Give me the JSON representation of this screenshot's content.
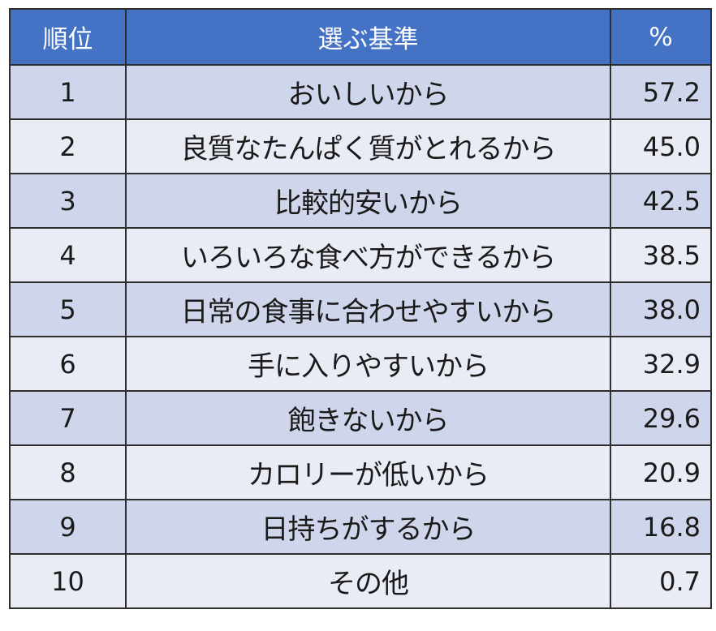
{
  "chart_data": {
    "type": "table",
    "columns": [
      "順位",
      "選ぶ基準",
      "%"
    ],
    "rows": [
      [
        "1",
        "おいしいから",
        "57.2"
      ],
      [
        "2",
        "良質なたんぱく質がとれるから",
        "45.0"
      ],
      [
        "3",
        "比較的安いから",
        "42.5"
      ],
      [
        "4",
        "いろいろな食べ方ができるから",
        "38.5"
      ],
      [
        "5",
        "日常の食事に合わせやすいから",
        "38.0"
      ],
      [
        "6",
        "手に入りやすいから",
        "32.9"
      ],
      [
        "7",
        "飽きないから",
        "29.6"
      ],
      [
        "8",
        "カロリーが低いから",
        "20.9"
      ],
      [
        "9",
        "日持ちがするから",
        "16.8"
      ],
      [
        "10",
        "その他",
        "0.7"
      ]
    ]
  },
  "colors": {
    "header_bg": "#4472c4",
    "header_text": "#ffffff",
    "row_band_dark": "#cfd5ea",
    "row_band_light": "#e9ebf5",
    "border": "#2e2e2e"
  }
}
